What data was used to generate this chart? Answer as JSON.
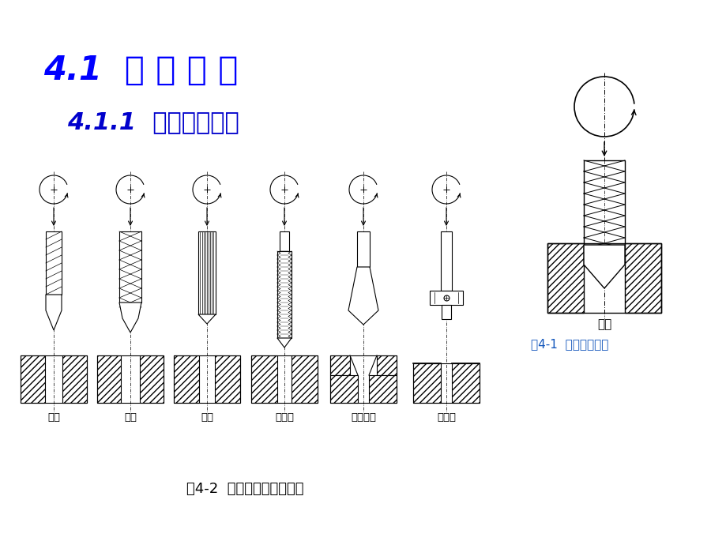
{
  "title1": "4.1  钻 削 加 工",
  "title2": "4.1.1  钻削加工方法",
  "title1_color": "#0000FF",
  "title2_color": "#0000CC",
  "bg_color": "#FFFFFF",
  "fig_caption1": "图4-1  钻削加工运动",
  "fig_caption2": "图4-2  钻床加工的基本内容",
  "labels": [
    "钻孔",
    "扩孔",
    "铰孔",
    "攻螺纹",
    "钻埋头孔",
    "刮平面"
  ],
  "label_color": "#000000",
  "caption_color": "#000000",
  "fig1_label": "钻孔",
  "line_color": "#000000"
}
